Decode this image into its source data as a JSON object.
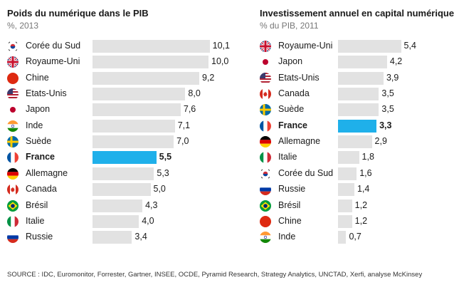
{
  "chart_data": [
    {
      "type": "bar",
      "title": "Poids du numérique dans le PIB",
      "subtitle": "%, 2013",
      "highlight": "France",
      "colors": {
        "bar": "#e2e2e2",
        "highlight": "#1fb0ea"
      },
      "categories": [
        "Corée du Sud",
        "Royaume-Uni",
        "Chine",
        "Etats-Unis",
        "Japon",
        "Inde",
        "Suède",
        "France",
        "Allemagne",
        "Canada",
        "Brésil",
        "Italie",
        "Russie"
      ],
      "flags": [
        "flag-korea-icon",
        "flag-uk-icon",
        "flag-china-icon",
        "flag-usa-icon",
        "flag-japan-icon",
        "flag-india-icon",
        "flag-sweden-icon",
        "flag-france-icon",
        "flag-germany-icon",
        "flag-canada-icon",
        "flag-brazil-icon",
        "flag-italy-icon",
        "flag-russia-icon"
      ],
      "values": [
        10.1,
        10.0,
        9.2,
        8.0,
        7.6,
        7.1,
        7.0,
        5.5,
        5.3,
        5.0,
        4.3,
        4.0,
        3.4
      ],
      "labels": [
        "10,1",
        "10,0",
        "9,2",
        "8,0",
        "7,6",
        "7,1",
        "7,0",
        "5,5",
        "5,3",
        "5,0",
        "4,3",
        "4,0",
        "3,4"
      ]
    },
    {
      "type": "bar",
      "title": "Investissement annuel en capital numérique",
      "subtitle": "% du PIB, 2011",
      "highlight": "France",
      "colors": {
        "bar": "#e2e2e2",
        "highlight": "#1fb0ea"
      },
      "categories": [
        "Royaume-Uni",
        "Japon",
        "Etats-Unis",
        "Canada",
        "Suède",
        "France",
        "Allemagne",
        "Italie",
        "Corée du Sud",
        "Russie",
        "Brésil",
        "Chine",
        "Inde"
      ],
      "flags": [
        "flag-uk-icon",
        "flag-japan-icon",
        "flag-usa-icon",
        "flag-canada-icon",
        "flag-sweden-icon",
        "flag-france-icon",
        "flag-germany-icon",
        "flag-italy-icon",
        "flag-korea-icon",
        "flag-russia-icon",
        "flag-brazil-icon",
        "flag-china-icon",
        "flag-india-icon"
      ],
      "values": [
        5.4,
        4.2,
        3.9,
        3.5,
        3.5,
        3.3,
        2.9,
        1.8,
        1.6,
        1.4,
        1.2,
        1.2,
        0.7
      ],
      "labels": [
        "5,4",
        "4,2",
        "3,9",
        "3,5",
        "3,5",
        "3,3",
        "2,9",
        "1,8",
        "1,6",
        "1,4",
        "1,2",
        "1,2",
        "0,7"
      ]
    }
  ],
  "source": "SOURCE : IDC, Euromonitor, Forrester, Gartner, INSEE, OCDE, Pyramid Research, Strategy Analytics, UNCTAD, Xerfi, analyse McKinsey"
}
